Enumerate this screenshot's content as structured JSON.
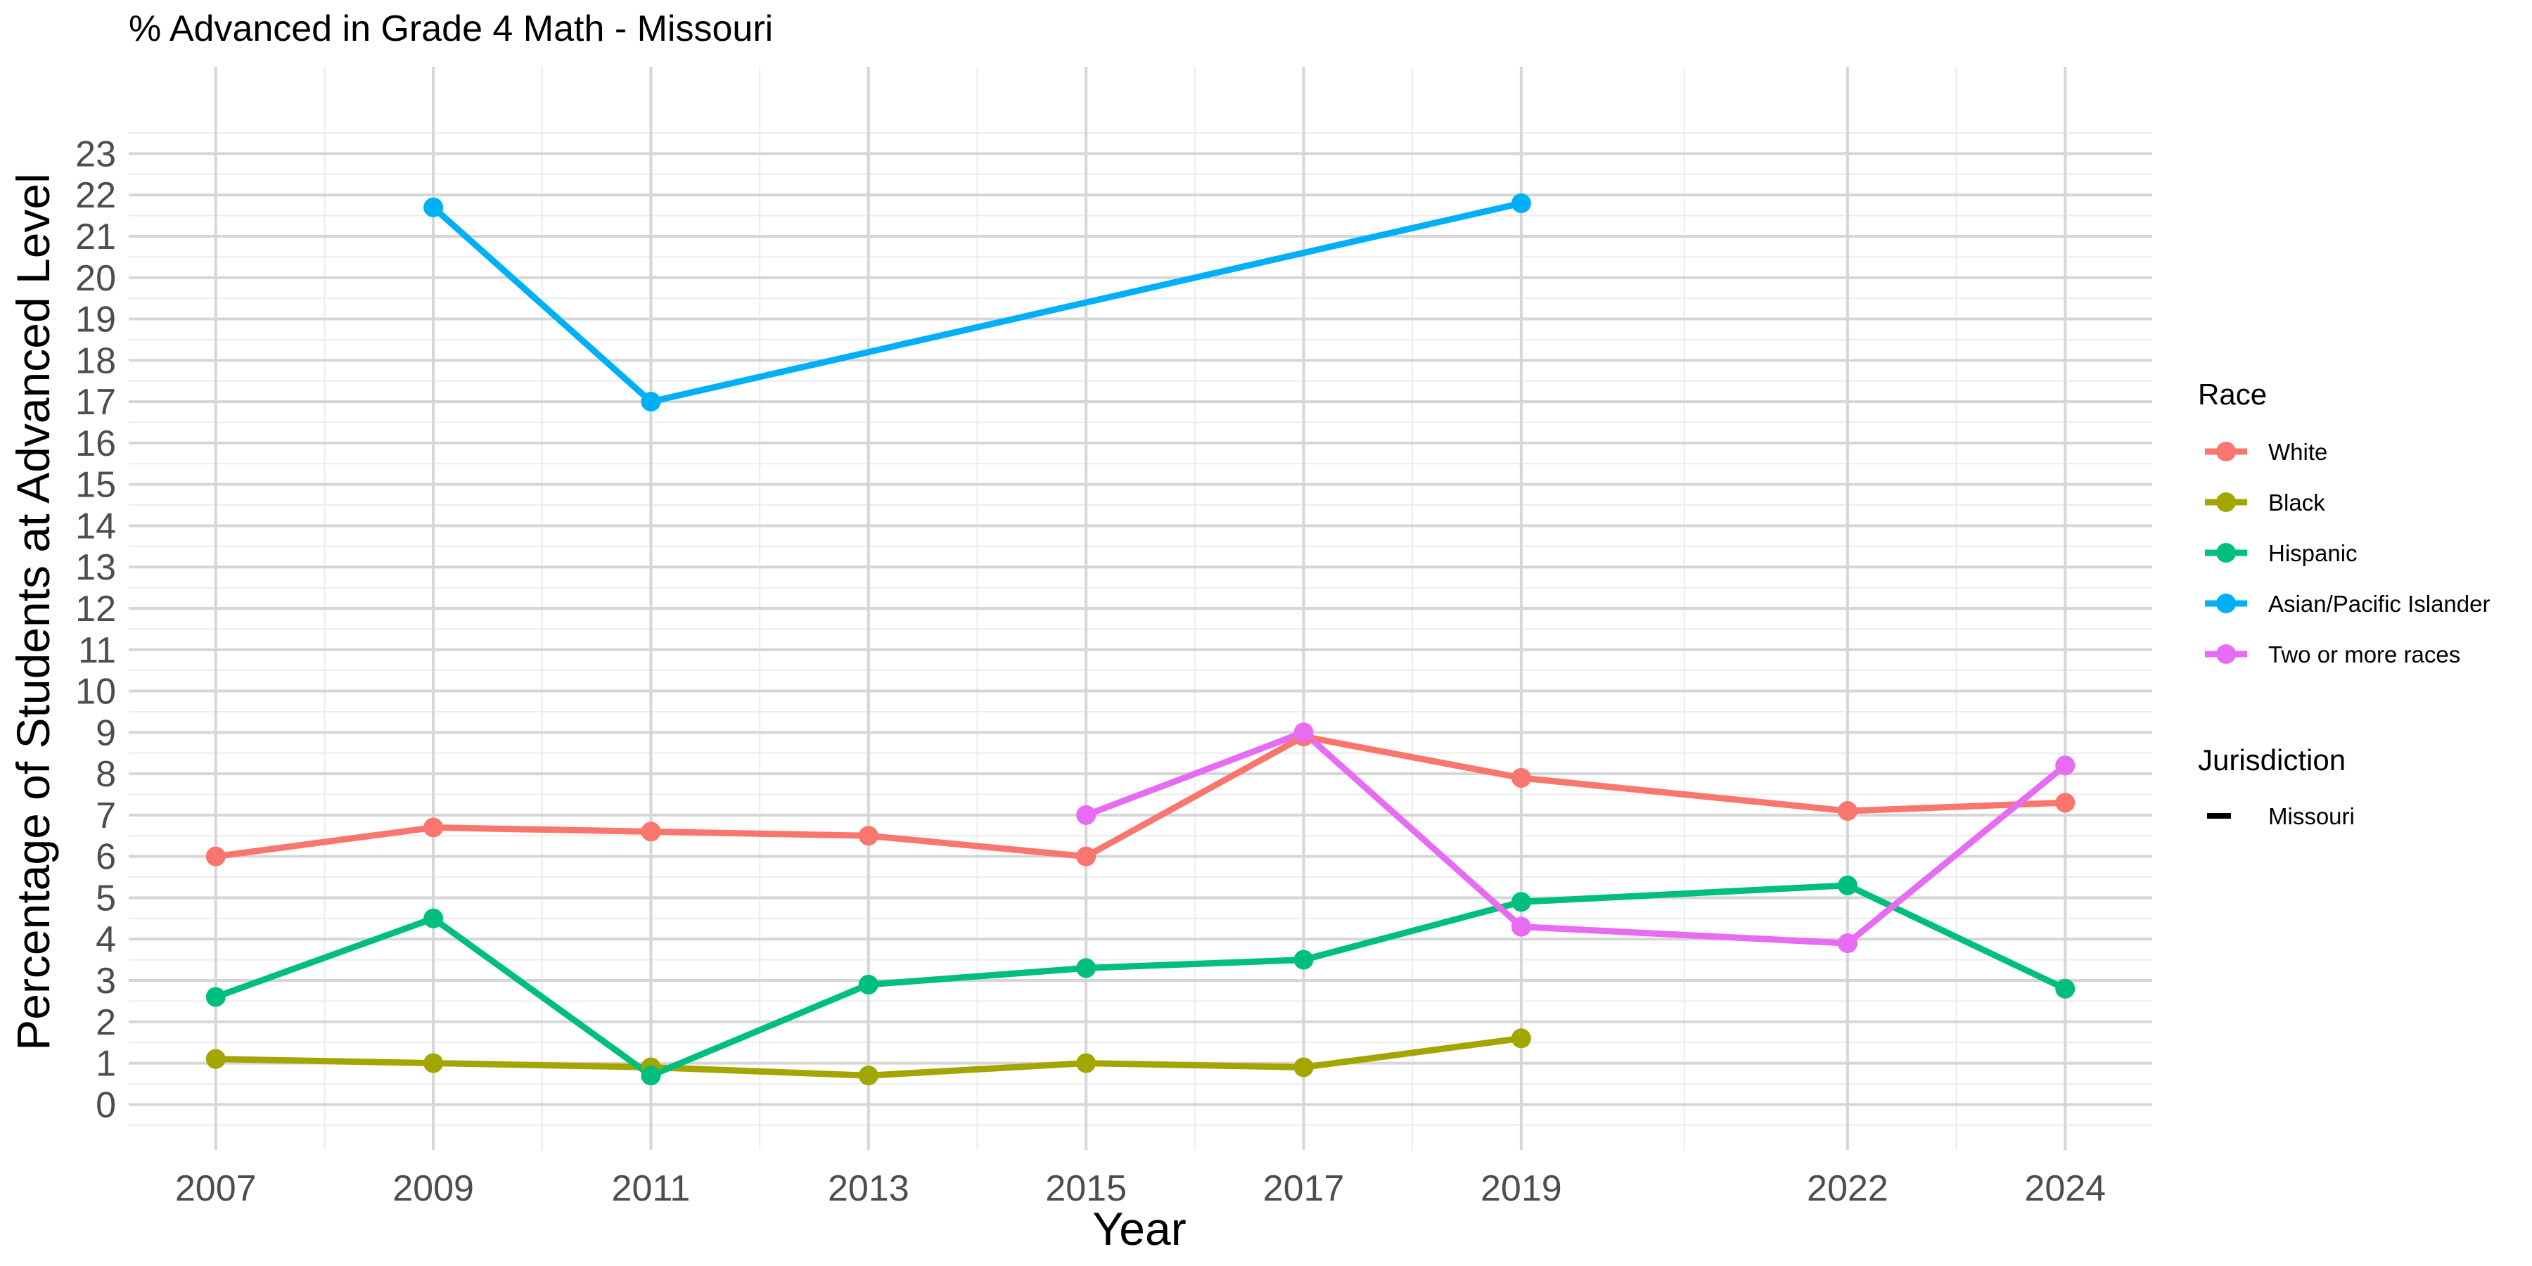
{
  "chart_data": {
    "type": "line",
    "title": "% Advanced in Grade 4 Math - Missouri",
    "xlabel": "Year",
    "ylabel": "Percentage of Students at Advanced Level",
    "x_ticks": [
      2007,
      2009,
      2011,
      2013,
      2015,
      2017,
      2019,
      2022,
      2024
    ],
    "y_ticks": [
      0,
      1,
      2,
      3,
      4,
      5,
      6,
      7,
      8,
      9,
      10,
      11,
      12,
      13,
      14,
      15,
      16,
      17,
      18,
      19,
      20,
      21,
      22,
      23
    ],
    "xlim": [
      2006.2,
      2024.8
    ],
    "ylim": [
      -1.1,
      25.1
    ],
    "grid": true,
    "legend_position": "right",
    "legend": {
      "race_title": "Race",
      "jurisdiction_title": "Jurisdiction",
      "jurisdiction_label": "Missouri"
    },
    "series": [
      {
        "name": "White",
        "color": "#F8766D",
        "points": [
          {
            "x": 2007,
            "y": 6.0
          },
          {
            "x": 2009,
            "y": 6.7
          },
          {
            "x": 2011,
            "y": 6.6
          },
          {
            "x": 2013,
            "y": 6.5
          },
          {
            "x": 2015,
            "y": 6.0
          },
          {
            "x": 2017,
            "y": 8.9
          },
          {
            "x": 2019,
            "y": 7.9
          },
          {
            "x": 2022,
            "y": 7.1
          },
          {
            "x": 2024,
            "y": 7.3
          }
        ]
      },
      {
        "name": "Black",
        "color": "#A3A500",
        "points": [
          {
            "x": 2007,
            "y": 1.1
          },
          {
            "x": 2009,
            "y": 1.0
          },
          {
            "x": 2011,
            "y": 0.9
          },
          {
            "x": 2013,
            "y": 0.7
          },
          {
            "x": 2015,
            "y": 1.0
          },
          {
            "x": 2017,
            "y": 0.9
          },
          {
            "x": 2019,
            "y": 1.6
          }
        ]
      },
      {
        "name": "Hispanic",
        "color": "#00BF7D",
        "points": [
          {
            "x": 2007,
            "y": 2.6
          },
          {
            "x": 2009,
            "y": 4.5
          },
          {
            "x": 2011,
            "y": 0.7
          },
          {
            "x": 2013,
            "y": 2.9
          },
          {
            "x": 2015,
            "y": 3.3
          },
          {
            "x": 2017,
            "y": 3.5
          },
          {
            "x": 2019,
            "y": 4.9
          },
          {
            "x": 2022,
            "y": 5.3
          },
          {
            "x": 2024,
            "y": 2.8
          }
        ]
      },
      {
        "name": "Asian/Pacific Islander",
        "color": "#00B0F6",
        "points": [
          {
            "x": 2009,
            "y": 21.7
          },
          {
            "x": 2011,
            "y": 17.0
          },
          {
            "x": 2019,
            "y": 21.8
          }
        ]
      },
      {
        "name": "Two or more races",
        "color": "#E76BF3",
        "points": [
          {
            "x": 2015,
            "y": 7.0
          },
          {
            "x": 2017,
            "y": 9.0
          },
          {
            "x": 2019,
            "y": 4.3
          },
          {
            "x": 2022,
            "y": 3.9
          },
          {
            "x": 2024,
            "y": 8.2
          }
        ]
      }
    ]
  }
}
